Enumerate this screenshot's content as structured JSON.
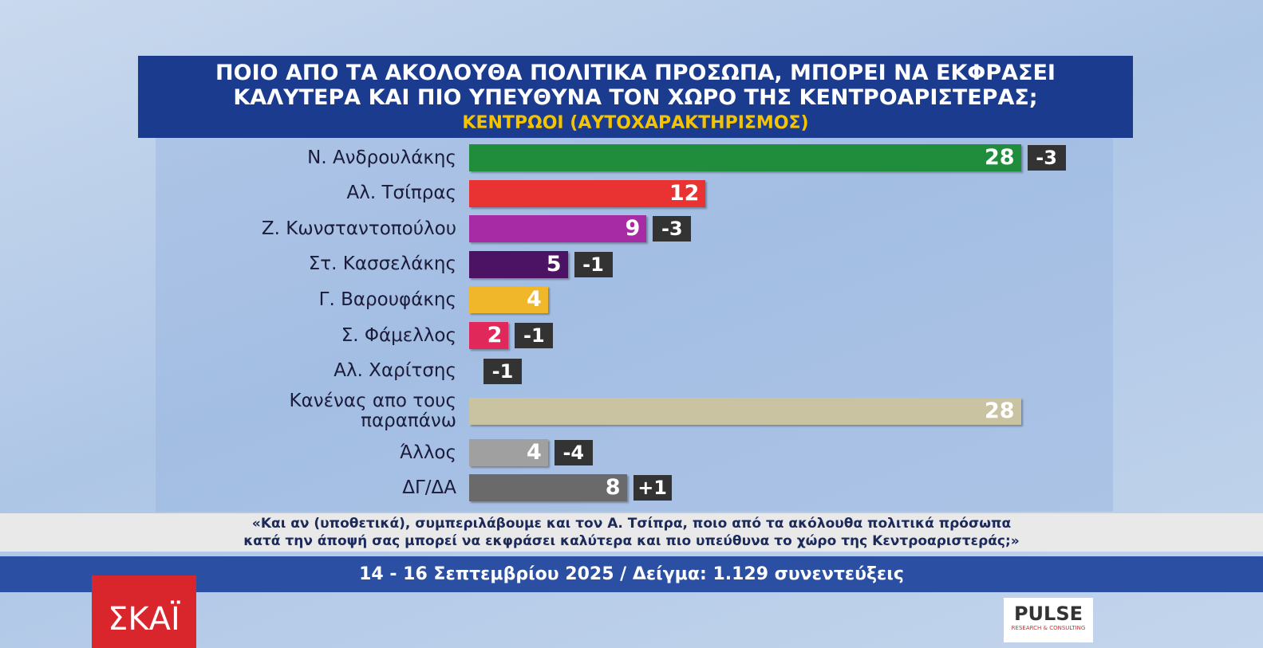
{
  "chart_data": {
    "type": "bar",
    "title": "ΠΟΙΟ ΑΠΟ ΤΑ ΑΚΟΛΟΥΘΑ ΠΟΛΙΤΙΚΑ ΠΡΟΣΩΠΑ, ΜΠΟΡΕΙ ΝΑ ΕΚΦΡΑΣΕΙ ΚΑΛΥΤΕΡΑ ΚΑΙ ΠΙΟ ΥΠΕΥΘΥΝΑ ΤΟΝ ΧΩΡΟ ΤΗΣ ΚΕΝΤΡΟΑΡΙΣΤΕΡΑΣ;",
    "subtitle": "ΚΕΝΤΡΩΟΙ (ΑΥΤΟΧΑΡΑΚΤΗΡΙΣΜΟΣ)",
    "categories": [
      "Ν. Ανδρουλάκης",
      "Αλ. Τσίπρας",
      "Ζ. Κωνσταντοπούλου",
      "Στ. Κασσελάκης",
      "Γ. Βαρουφάκης",
      "Σ. Φάμελλος",
      "Αλ. Χαρίτσης",
      "Κανένας απο τους παραπάνω",
      "Άλλος",
      "ΔΓ/ΔΑ"
    ],
    "values": [
      28,
      12,
      9,
      5,
      4,
      2,
      null,
      28,
      4,
      8
    ],
    "colors": [
      "#1f8d3c",
      "#e93232",
      "#a62ba4",
      "#4c1263",
      "#f1b72b",
      "#e0285a",
      null,
      "#c9c3a2",
      "#a0a0a0",
      "#6a6a6a"
    ],
    "change_values": [
      -3,
      null,
      -3,
      -1,
      null,
      -1,
      -1,
      null,
      -4,
      1
    ],
    "change_labels": [
      "-3",
      null,
      "-3",
      "-1",
      null,
      "-1",
      "-1",
      null,
      "-4",
      "+1"
    ],
    "question": "«Και αν (υποθετικά), συμπεριλάβουμε και τον Α. Τσίπρα, ποιο από τα ακόλουθα πολιτικά πρόσωπα κατά την άποψή σας μπορεί να εκφράσει καλύτερα και πιο υπεύθυνα το χώρο της Κεντροαριστεράς;»",
    "source": "14 - 16 Σεπτεμβρίου 2025 / Δείγμα: 1.129 συνεντεύξεις"
  },
  "logos": {
    "channel": "ΣΚΑΪ",
    "pollster": "PULSE",
    "pollster_tagline": "RESEARCH & CONSULTING"
  }
}
